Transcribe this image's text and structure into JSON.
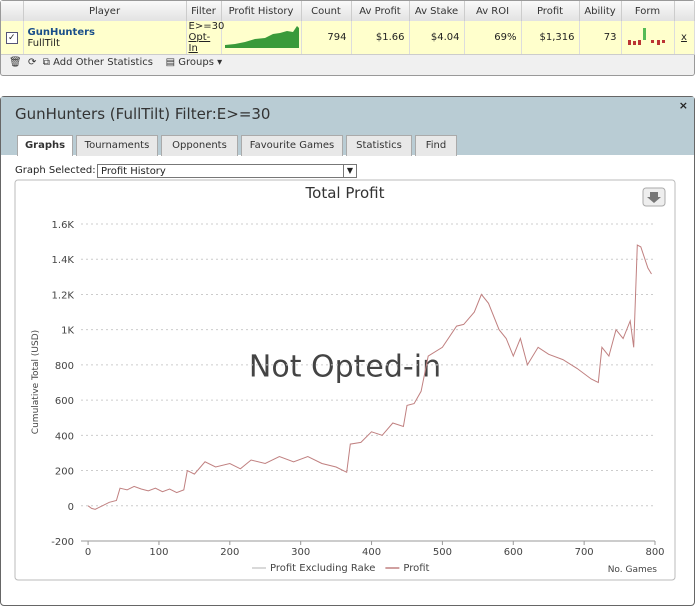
{
  "table": {
    "headers": [
      "Player",
      "Filter",
      "Profit History",
      "Count",
      "Av Profit",
      "Av Stake",
      "Av ROI",
      "Profit",
      "Ability",
      "Form"
    ],
    "row": {
      "player": "GunHunters",
      "site": "FullTilt",
      "filter": "E>=30",
      "opt_in": "Opt-In",
      "count": 794,
      "av_profit": "$1.66",
      "av_stake": "$4.04",
      "av_roi": "69%",
      "profit": "$1,316",
      "ability": 73
    }
  },
  "toolbar": {
    "add_stats": "Add Other Statistics",
    "groups": "Groups"
  },
  "panel": {
    "title": "GunHunters (FullTilt) Filter:E>=30",
    "tabs": [
      "Graphs",
      "Tournaments",
      "Opponents",
      "Favourite Games",
      "Statistics",
      "Find"
    ],
    "graph_label": "Graph Selected:",
    "graph_selected": "Profit History"
  },
  "chart_data": {
    "type": "line",
    "title": "Total Profit",
    "y_label": "Cumulative Total (USD)",
    "x_label": "No. Games",
    "watermark": "Not Opted-in",
    "x": [
      0,
      5,
      10,
      20,
      30,
      40,
      45,
      55,
      65,
      75,
      85,
      95,
      105,
      115,
      125,
      135,
      140,
      150,
      165,
      180,
      200,
      215,
      230,
      250,
      270,
      290,
      310,
      330,
      350,
      365,
      370,
      385,
      400,
      415,
      430,
      445,
      450,
      460,
      470,
      480,
      500,
      520,
      530,
      545,
      555,
      565,
      580,
      590,
      600,
      610,
      620,
      635,
      650,
      670,
      690,
      710,
      720,
      725,
      735,
      745,
      755,
      765,
      770,
      775,
      780,
      790,
      795
    ],
    "series": [
      {
        "name": "Profit Excluding Rake",
        "color": "#cccccc",
        "values": [
          null,
          null,
          null,
          null,
          null,
          null,
          null,
          null,
          null,
          null,
          null,
          null,
          null,
          null,
          null,
          null,
          null,
          null,
          null,
          null,
          null,
          null,
          null,
          null,
          null,
          null,
          null,
          null,
          null,
          null,
          null,
          null,
          null,
          null,
          null,
          null,
          null,
          null,
          null,
          null,
          null,
          null,
          null,
          null,
          null,
          null,
          null,
          null,
          null,
          null,
          null,
          null,
          null,
          null,
          null,
          null,
          null,
          null,
          null,
          null,
          null,
          null,
          null,
          null,
          null,
          null,
          null
        ]
      },
      {
        "name": "Profit",
        "color": "#c08080",
        "values": [
          0,
          -15,
          -20,
          0,
          20,
          30,
          100,
          90,
          110,
          95,
          85,
          100,
          80,
          95,
          75,
          90,
          200,
          180,
          250,
          220,
          240,
          210,
          260,
          240,
          280,
          250,
          280,
          240,
          220,
          190,
          350,
          360,
          420,
          400,
          470,
          450,
          570,
          580,
          650,
          850,
          900,
          1020,
          1030,
          1100,
          1200,
          1150,
          1000,
          950,
          850,
          950,
          800,
          900,
          860,
          830,
          780,
          720,
          700,
          900,
          850,
          1000,
          950,
          1050,
          900,
          1480,
          1470,
          1350,
          1316
        ]
      }
    ],
    "xlim": [
      -10,
      800
    ],
    "ylim": [
      -200,
      1600
    ],
    "xticks": [
      0,
      100,
      200,
      300,
      400,
      500,
      600,
      700,
      800
    ],
    "yticks": [
      -200,
      0,
      200,
      400,
      600,
      800,
      {
        "value": 1000,
        "label": "1K"
      },
      {
        "value": 1200,
        "label": "1.2K"
      },
      {
        "value": 1400,
        "label": "1.4K"
      },
      {
        "value": 1600,
        "label": "1.6K"
      }
    ],
    "grid": true,
    "legend": "bottom"
  }
}
